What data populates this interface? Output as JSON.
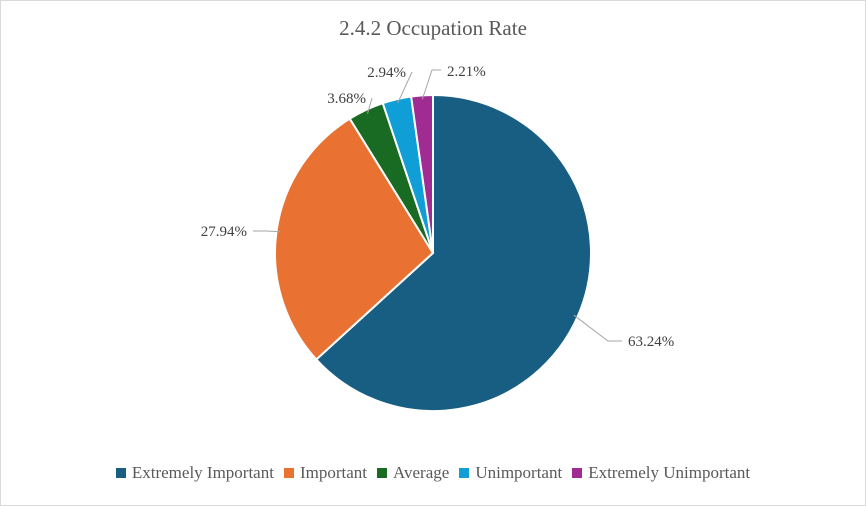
{
  "chart_data": {
    "type": "pie",
    "title": "2.4.2 Occupation Rate",
    "categories": [
      "Extremely Important",
      "Important",
      "Average",
      "Unimportant",
      "Extremely Unimportant"
    ],
    "values": [
      63.24,
      27.94,
      3.68,
      2.94,
      2.21
    ],
    "data_labels": [
      "63.24%",
      "27.94%",
      "3.68%",
      "2.94%",
      "2.21%"
    ],
    "colors": [
      "#175e82",
      "#e97132",
      "#196b24",
      "#0f9ed5",
      "#a02b93"
    ],
    "legend_position": "bottom",
    "start_angle": "12 o'clock, clockwise"
  }
}
